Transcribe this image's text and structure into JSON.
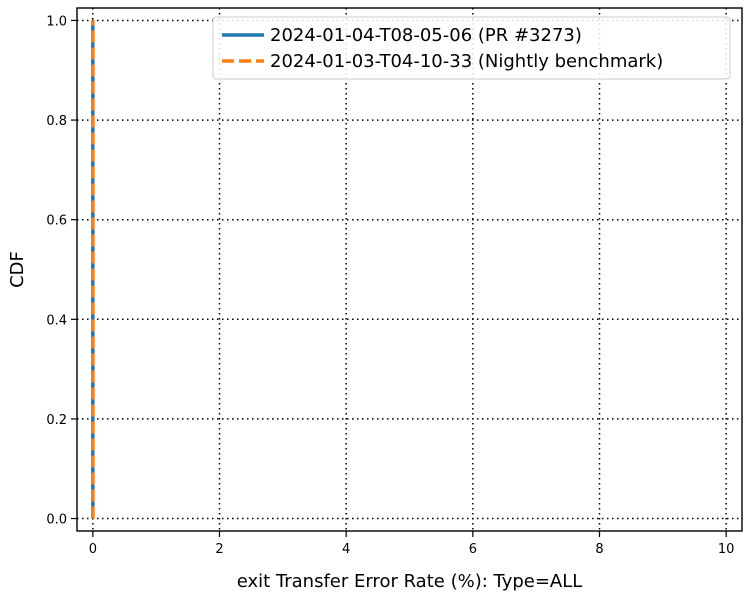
{
  "chart_data": {
    "type": "line",
    "title": "",
    "xlabel": "exit Transfer Error Rate (%): Type=ALL",
    "ylabel": "CDF",
    "xlim": [
      -0.25,
      10.25
    ],
    "ylim": [
      -0.025,
      1.025
    ],
    "x_ticks": [
      0,
      2,
      4,
      6,
      8,
      10
    ],
    "y_ticks": [
      0.0,
      0.2,
      0.4,
      0.6,
      0.8,
      1.0
    ],
    "x_tick_labels": [
      "0",
      "2",
      "4",
      "6",
      "8",
      "10"
    ],
    "y_tick_labels": [
      "0.0",
      "0.2",
      "0.4",
      "0.6",
      "0.8",
      "1.0"
    ],
    "grid": true,
    "grid_style": "dotted",
    "legend_position": "top-right",
    "series": [
      {
        "name": "2024-01-04-T08-05-06 (PR #3273)",
        "color": "#1f77b4",
        "line_style": "solid",
        "x": [
          0,
          0
        ],
        "y": [
          0.0,
          1.0
        ]
      },
      {
        "name": "2024-01-03-T04-10-33 (Nightly benchmark)",
        "color": "#ff7f0e",
        "line_style": "dashed",
        "x": [
          0,
          0
        ],
        "y": [
          0.0,
          1.0
        ]
      }
    ]
  }
}
